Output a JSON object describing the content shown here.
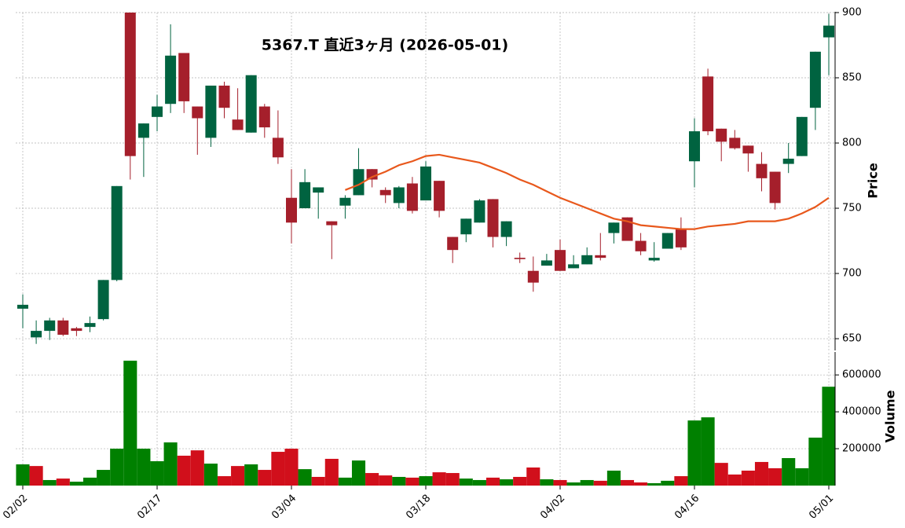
{
  "chart_data": [
    {
      "type": "candlestick",
      "title": "5367.T  直近3ヶ月  (2026-05-01)",
      "ylabel": "Price",
      "categories": [
        "02/02",
        null,
        null,
        null,
        null,
        null,
        null,
        null,
        null,
        null,
        "02/17",
        null,
        null,
        null,
        null,
        null,
        null,
        null,
        null,
        null,
        "03/04",
        null,
        null,
        null,
        null,
        null,
        null,
        null,
        null,
        null,
        "03/18",
        null,
        null,
        null,
        null,
        null,
        null,
        null,
        null,
        null,
        "04/02",
        null,
        null,
        null,
        null,
        null,
        null,
        null,
        null,
        null,
        "04/16",
        null,
        null,
        null,
        null,
        null,
        null,
        null,
        null,
        null,
        "05/01"
      ],
      "open": [
        673,
        651,
        656,
        664,
        658,
        659,
        665,
        695,
        900,
        804,
        820,
        830,
        869,
        828,
        804,
        844,
        818,
        808,
        828,
        804,
        758,
        750,
        762,
        740,
        752,
        760,
        780,
        764,
        754,
        769,
        756,
        771,
        728,
        730,
        739,
        757,
        728,
        712,
        702,
        706,
        718,
        704,
        707,
        714,
        731,
        743,
        725,
        710,
        719,
        734,
        786,
        851,
        811,
        804,
        798,
        784,
        778,
        784,
        790,
        827,
        881
      ],
      "high": [
        684,
        664,
        666,
        666,
        659,
        667,
        695,
        767,
        900,
        815,
        837,
        891,
        869,
        828,
        844,
        847,
        842,
        852,
        830,
        825,
        780,
        780,
        766,
        740,
        760,
        796,
        780,
        766,
        767,
        774,
        786,
        771,
        728,
        742,
        757,
        757,
        740,
        716,
        713,
        715,
        726,
        714,
        720,
        731,
        739,
        743,
        731,
        724,
        731,
        743,
        819,
        857,
        811,
        810,
        798,
        793,
        778,
        800,
        820,
        870,
        899
      ],
      "low": [
        658,
        646,
        649,
        652,
        652,
        655,
        664,
        694,
        772,
        774,
        809,
        823,
        823,
        791,
        797,
        819,
        810,
        808,
        804,
        784,
        723,
        750,
        742,
        711,
        742,
        760,
        766,
        754,
        750,
        746,
        756,
        743,
        708,
        724,
        739,
        720,
        721,
        708,
        686,
        706,
        702,
        704,
        707,
        710,
        723,
        725,
        714,
        709,
        719,
        718,
        766,
        806,
        786,
        795,
        778,
        763,
        749,
        777,
        790,
        810,
        852
      ],
      "close": [
        676,
        656,
        664,
        653,
        656,
        662,
        695,
        767,
        790,
        815,
        828,
        867,
        832,
        819,
        844,
        827,
        810,
        852,
        812,
        789,
        739,
        770,
        766,
        737,
        758,
        780,
        772,
        760,
        766,
        748,
        782,
        748,
        718,
        742,
        756,
        728,
        740,
        711,
        693,
        710,
        702,
        707,
        714,
        712,
        739,
        725,
        717,
        712,
        731,
        720,
        809,
        809,
        801,
        796,
        792,
        773,
        754,
        788,
        820,
        870,
        890
      ],
      "up_color": "#006340",
      "down_color": "#a51f2b",
      "ma": {
        "color": "#e8581c",
        "values": [
          null,
          null,
          null,
          null,
          null,
          null,
          null,
          null,
          null,
          null,
          null,
          null,
          null,
          null,
          null,
          null,
          null,
          null,
          null,
          null,
          null,
          null,
          null,
          null,
          764,
          768,
          774,
          778,
          783,
          786,
          790,
          791,
          789,
          787,
          785,
          781,
          777,
          772,
          768,
          763,
          758,
          754,
          750,
          746,
          742,
          740,
          737,
          736,
          735,
          734,
          734,
          736,
          737,
          738,
          740,
          740,
          740,
          742,
          746,
          751,
          758
        ]
      },
      "ylim": [
        641,
        900
      ],
      "yticks": [
        650,
        700,
        750,
        800,
        850,
        900
      ],
      "grid": true
    },
    {
      "type": "bar",
      "ylabel": "Volume",
      "values": [
        115000,
        106000,
        30000,
        38000,
        21000,
        43000,
        85000,
        200000,
        677000,
        200000,
        132000,
        234000,
        162000,
        191000,
        119000,
        51000,
        106000,
        115000,
        85000,
        183000,
        200000,
        89000,
        47000,
        145000,
        43000,
        136000,
        68000,
        55000,
        47000,
        43000,
        51000,
        72000,
        68000,
        38000,
        30000,
        43000,
        34000,
        47000,
        98000,
        34000,
        30000,
        17000,
        30000,
        26000,
        81000,
        30000,
        17000,
        13000,
        26000,
        51000,
        353000,
        370000,
        123000,
        60000,
        81000,
        128000,
        94000,
        149000,
        94000,
        260000,
        536000
      ],
      "colors": [
        "#008000",
        "#d10f1b",
        "#008000",
        "#d10f1b",
        "#008000",
        "#008000",
        "#008000",
        "#008000",
        "#008000",
        "#008000",
        "#008000",
        "#008000",
        "#d10f1b",
        "#d10f1b",
        "#008000",
        "#d10f1b",
        "#d10f1b",
        "#008000",
        "#d10f1b",
        "#d10f1b",
        "#d10f1b",
        "#008000",
        "#d10f1b",
        "#d10f1b",
        "#008000",
        "#008000",
        "#d10f1b",
        "#d10f1b",
        "#008000",
        "#d10f1b",
        "#008000",
        "#d10f1b",
        "#d10f1b",
        "#008000",
        "#008000",
        "#d10f1b",
        "#008000",
        "#d10f1b",
        "#d10f1b",
        "#008000",
        "#d10f1b",
        "#008000",
        "#008000",
        "#d10f1b",
        "#008000",
        "#d10f1b",
        "#d10f1b",
        "#008000",
        "#008000",
        "#d10f1b",
        "#008000",
        "#008000",
        "#d10f1b",
        "#d10f1b",
        "#d10f1b",
        "#d10f1b",
        "#d10f1b",
        "#008000",
        "#008000",
        "#008000",
        "#008000"
      ],
      "ylim": [
        0,
        720000
      ],
      "yticks": [
        200000,
        400000,
        600000
      ],
      "grid": true
    }
  ]
}
